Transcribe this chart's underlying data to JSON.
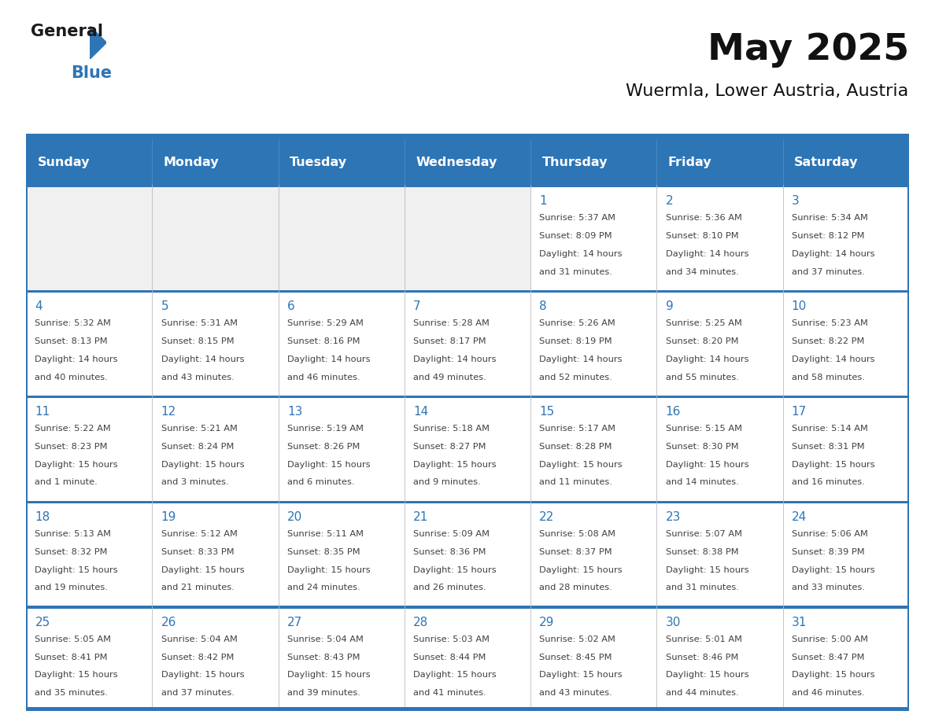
{
  "title": "May 2025",
  "subtitle": "Wuermla, Lower Austria, Austria",
  "header_bg": "#2E75B6",
  "header_text_color": "#FFFFFF",
  "day_names": [
    "Sunday",
    "Monday",
    "Tuesday",
    "Wednesday",
    "Thursday",
    "Friday",
    "Saturday"
  ],
  "cell_bg_white": "#FFFFFF",
  "cell_bg_gray": "#F0F0F0",
  "border_color": "#2E75B6",
  "date_color": "#2E75B6",
  "text_color": "#404040",
  "logo_black": "#1a1a1a",
  "logo_blue": "#2E75B6",
  "calendar": [
    [
      null,
      null,
      null,
      null,
      {
        "day": 1,
        "sunrise": "5:37 AM",
        "sunset": "8:09 PM",
        "daylight": "14 hours",
        "daylight2": "and 31 minutes."
      },
      {
        "day": 2,
        "sunrise": "5:36 AM",
        "sunset": "8:10 PM",
        "daylight": "14 hours",
        "daylight2": "and 34 minutes."
      },
      {
        "day": 3,
        "sunrise": "5:34 AM",
        "sunset": "8:12 PM",
        "daylight": "14 hours",
        "daylight2": "and 37 minutes."
      }
    ],
    [
      {
        "day": 4,
        "sunrise": "5:32 AM",
        "sunset": "8:13 PM",
        "daylight": "14 hours",
        "daylight2": "and 40 minutes."
      },
      {
        "day": 5,
        "sunrise": "5:31 AM",
        "sunset": "8:15 PM",
        "daylight": "14 hours",
        "daylight2": "and 43 minutes."
      },
      {
        "day": 6,
        "sunrise": "5:29 AM",
        "sunset": "8:16 PM",
        "daylight": "14 hours",
        "daylight2": "and 46 minutes."
      },
      {
        "day": 7,
        "sunrise": "5:28 AM",
        "sunset": "8:17 PM",
        "daylight": "14 hours",
        "daylight2": "and 49 minutes."
      },
      {
        "day": 8,
        "sunrise": "5:26 AM",
        "sunset": "8:19 PM",
        "daylight": "14 hours",
        "daylight2": "and 52 minutes."
      },
      {
        "day": 9,
        "sunrise": "5:25 AM",
        "sunset": "8:20 PM",
        "daylight": "14 hours",
        "daylight2": "and 55 minutes."
      },
      {
        "day": 10,
        "sunrise": "5:23 AM",
        "sunset": "8:22 PM",
        "daylight": "14 hours",
        "daylight2": "and 58 minutes."
      }
    ],
    [
      {
        "day": 11,
        "sunrise": "5:22 AM",
        "sunset": "8:23 PM",
        "daylight": "15 hours",
        "daylight2": "and 1 minute."
      },
      {
        "day": 12,
        "sunrise": "5:21 AM",
        "sunset": "8:24 PM",
        "daylight": "15 hours",
        "daylight2": "and 3 minutes."
      },
      {
        "day": 13,
        "sunrise": "5:19 AM",
        "sunset": "8:26 PM",
        "daylight": "15 hours",
        "daylight2": "and 6 minutes."
      },
      {
        "day": 14,
        "sunrise": "5:18 AM",
        "sunset": "8:27 PM",
        "daylight": "15 hours",
        "daylight2": "and 9 minutes."
      },
      {
        "day": 15,
        "sunrise": "5:17 AM",
        "sunset": "8:28 PM",
        "daylight": "15 hours",
        "daylight2": "and 11 minutes."
      },
      {
        "day": 16,
        "sunrise": "5:15 AM",
        "sunset": "8:30 PM",
        "daylight": "15 hours",
        "daylight2": "and 14 minutes."
      },
      {
        "day": 17,
        "sunrise": "5:14 AM",
        "sunset": "8:31 PM",
        "daylight": "15 hours",
        "daylight2": "and 16 minutes."
      }
    ],
    [
      {
        "day": 18,
        "sunrise": "5:13 AM",
        "sunset": "8:32 PM",
        "daylight": "15 hours",
        "daylight2": "and 19 minutes."
      },
      {
        "day": 19,
        "sunrise": "5:12 AM",
        "sunset": "8:33 PM",
        "daylight": "15 hours",
        "daylight2": "and 21 minutes."
      },
      {
        "day": 20,
        "sunrise": "5:11 AM",
        "sunset": "8:35 PM",
        "daylight": "15 hours",
        "daylight2": "and 24 minutes."
      },
      {
        "day": 21,
        "sunrise": "5:09 AM",
        "sunset": "8:36 PM",
        "daylight": "15 hours",
        "daylight2": "and 26 minutes."
      },
      {
        "day": 22,
        "sunrise": "5:08 AM",
        "sunset": "8:37 PM",
        "daylight": "15 hours",
        "daylight2": "and 28 minutes."
      },
      {
        "day": 23,
        "sunrise": "5:07 AM",
        "sunset": "8:38 PM",
        "daylight": "15 hours",
        "daylight2": "and 31 minutes."
      },
      {
        "day": 24,
        "sunrise": "5:06 AM",
        "sunset": "8:39 PM",
        "daylight": "15 hours",
        "daylight2": "and 33 minutes."
      }
    ],
    [
      {
        "day": 25,
        "sunrise": "5:05 AM",
        "sunset": "8:41 PM",
        "daylight": "15 hours",
        "daylight2": "and 35 minutes."
      },
      {
        "day": 26,
        "sunrise": "5:04 AM",
        "sunset": "8:42 PM",
        "daylight": "15 hours",
        "daylight2": "and 37 minutes."
      },
      {
        "day": 27,
        "sunrise": "5:04 AM",
        "sunset": "8:43 PM",
        "daylight": "15 hours",
        "daylight2": "and 39 minutes."
      },
      {
        "day": 28,
        "sunrise": "5:03 AM",
        "sunset": "8:44 PM",
        "daylight": "15 hours",
        "daylight2": "and 41 minutes."
      },
      {
        "day": 29,
        "sunrise": "5:02 AM",
        "sunset": "8:45 PM",
        "daylight": "15 hours",
        "daylight2": "and 43 minutes."
      },
      {
        "day": 30,
        "sunrise": "5:01 AM",
        "sunset": "8:46 PM",
        "daylight": "15 hours",
        "daylight2": "and 44 minutes."
      },
      {
        "day": 31,
        "sunrise": "5:00 AM",
        "sunset": "8:47 PM",
        "daylight": "15 hours",
        "daylight2": "and 46 minutes."
      }
    ]
  ]
}
